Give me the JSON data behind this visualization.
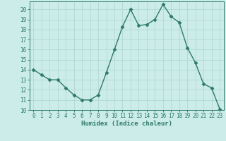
{
  "x": [
    0,
    1,
    2,
    3,
    4,
    5,
    6,
    7,
    8,
    9,
    10,
    11,
    12,
    13,
    14,
    15,
    16,
    17,
    18,
    19,
    20,
    21,
    22,
    23
  ],
  "y": [
    14,
    13.5,
    13,
    13,
    12.2,
    11.5,
    11,
    11,
    11.5,
    13.7,
    16,
    18.3,
    20,
    18.4,
    18.5,
    19,
    20.5,
    19.3,
    18.7,
    16.2,
    14.7,
    12.6,
    12.2,
    10.1
  ],
  "line_color": "#2d7a6a",
  "marker": "D",
  "marker_size": 2.5,
  "bg_color": "#ccecea",
  "grid_color": "#aad4d0",
  "xlabel": "Humidex (Indice chaleur)",
  "ylim": [
    10,
    20.8
  ],
  "xlim": [
    -0.5,
    23.5
  ],
  "yticks": [
    10,
    11,
    12,
    13,
    14,
    15,
    16,
    17,
    18,
    19,
    20
  ],
  "xticks": [
    0,
    1,
    2,
    3,
    4,
    5,
    6,
    7,
    8,
    9,
    10,
    11,
    12,
    13,
    14,
    15,
    16,
    17,
    18,
    19,
    20,
    21,
    22,
    23
  ],
  "tick_fontsize": 5.5,
  "xlabel_fontsize": 6.5,
  "xlabel_fontweight": "bold",
  "linewidth": 1.0
}
